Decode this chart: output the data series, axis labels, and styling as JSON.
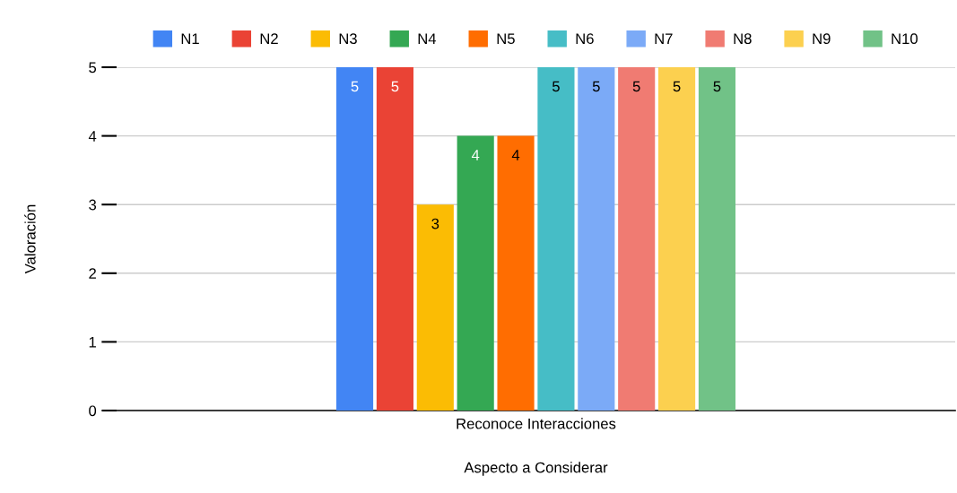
{
  "chart_data": {
    "type": "bar",
    "xlabel": "Aspecto a Considerar",
    "ylabel": "Valoración",
    "categories": [
      "Reconoce Interacciones"
    ],
    "series": [
      {
        "name": "N1",
        "color": "#4285f4",
        "values": [
          5
        ]
      },
      {
        "name": "N2",
        "color": "#ea4335",
        "values": [
          5
        ]
      },
      {
        "name": "N3",
        "color": "#fbbc04",
        "values": [
          3
        ]
      },
      {
        "name": "N4",
        "color": "#34a853",
        "values": [
          4
        ]
      },
      {
        "name": "N5",
        "color": "#ff6d01",
        "values": [
          4
        ]
      },
      {
        "name": "N6",
        "color": "#46bdc6",
        "values": [
          5
        ]
      },
      {
        "name": "N7",
        "color": "#7baaf7",
        "values": [
          5
        ]
      },
      {
        "name": "N8",
        "color": "#f07b72",
        "values": [
          5
        ]
      },
      {
        "name": "N9",
        "color": "#fcd04f",
        "values": [
          5
        ]
      },
      {
        "name": "N10",
        "color": "#71c287",
        "values": [
          5
        ]
      }
    ],
    "ylim": [
      0,
      5
    ],
    "yticks": [
      0,
      1,
      2,
      3,
      4,
      5
    ],
    "grid": "y",
    "legend": "top",
    "data_labels": true
  }
}
